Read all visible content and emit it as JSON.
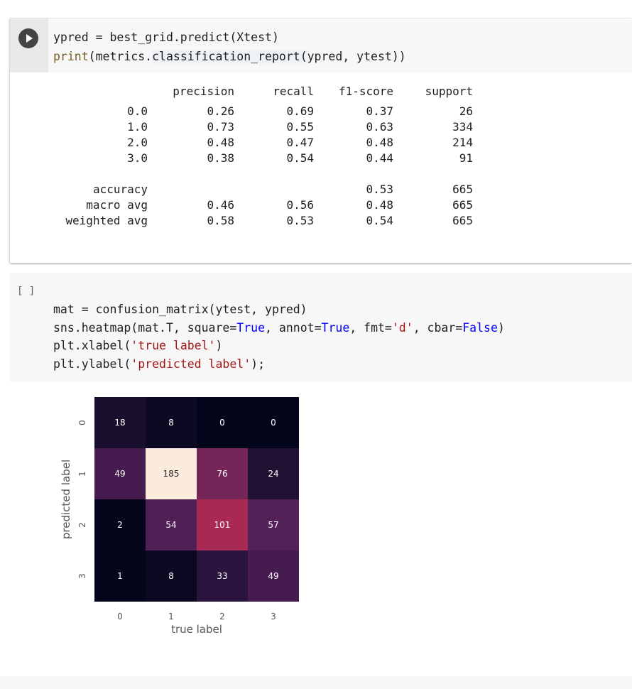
{
  "cell1": {
    "code": [
      "ypred = best_grid.predict(Xtest)",
      "print(metrics.classification_report(ypred, ytest))"
    ],
    "report": {
      "headers": [
        "",
        "precision",
        "recall",
        "f1-score",
        "support"
      ],
      "rows": [
        [
          "0.0",
          "0.26",
          "0.69",
          "0.37",
          "26"
        ],
        [
          "1.0",
          "0.73",
          "0.55",
          "0.63",
          "334"
        ],
        [
          "2.0",
          "0.48",
          "0.47",
          "0.48",
          "214"
        ],
        [
          "3.0",
          "0.38",
          "0.54",
          "0.44",
          "91"
        ]
      ],
      "summary": [
        [
          "accuracy",
          "",
          "",
          "0.53",
          "665"
        ],
        [
          "macro avg",
          "0.46",
          "0.56",
          "0.48",
          "665"
        ],
        [
          "weighted avg",
          "0.58",
          "0.53",
          "0.54",
          "665"
        ]
      ]
    }
  },
  "cell2": {
    "prompt": "[ ]",
    "code": [
      "mat = confusion_matrix(ytest, ypred)",
      "sns.heatmap(mat.T, square=True, annot=True, fmt='d', cbar=False)",
      "plt.xlabel('true label')",
      "plt.ylabel('predicted label');"
    ]
  },
  "chart_data": {
    "type": "heatmap",
    "xlabel": "true label",
    "ylabel": "predicted label",
    "x_categories": [
      "0",
      "1",
      "2",
      "3"
    ],
    "y_categories": [
      "0",
      "1",
      "2",
      "3"
    ],
    "values": [
      [
        18,
        8,
        0,
        0
      ],
      [
        49,
        185,
        76,
        24
      ],
      [
        2,
        54,
        101,
        57
      ],
      [
        1,
        8,
        33,
        49
      ]
    ],
    "colormap": "rocket",
    "vmin": 0,
    "vmax": 185,
    "colorbar": false
  }
}
